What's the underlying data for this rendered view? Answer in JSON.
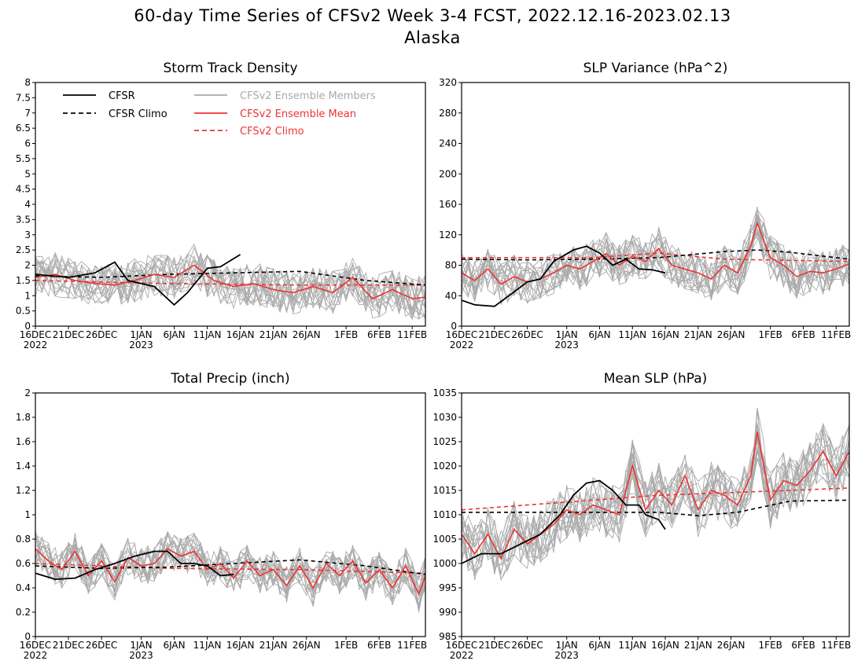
{
  "figure": {
    "title_line1": "60-day Time Series of CFSv2 Week 3-4 FCST, 2022.12.16-2023.02.13",
    "title_line2": "Alaska"
  },
  "colors": {
    "cfsr": "#000000",
    "member": "#aaaaaa",
    "mean": "#ee3333",
    "climo_cfsv2": "#ee3333"
  },
  "legend": [
    {
      "label": "CFSR",
      "style": "solid",
      "color": "#000000"
    },
    {
      "label": "CFSR Climo",
      "style": "dashed",
      "color": "#000000"
    },
    {
      "label": "CFSv2 Ensemble Members",
      "style": "solid",
      "color": "#aaaaaa"
    },
    {
      "label": "CFSv2 Ensemble Mean",
      "style": "solid",
      "color": "#ee3333"
    },
    {
      "label": "CFSv2 Climo",
      "style": "dashed",
      "color": "#ee3333"
    }
  ],
  "x_ticks": [
    "16DEC",
    "21DEC",
    "26DEC",
    "1JAN",
    "6JAN",
    "11JAN",
    "16JAN",
    "21JAN",
    "26JAN",
    "1FEB",
    "6FEB",
    "11FEB"
  ],
  "x_tick_days": [
    0,
    5,
    10,
    16,
    21,
    26,
    31,
    36,
    41,
    47,
    52,
    57
  ],
  "x_year_labels": [
    {
      "day": 0,
      "text": "2022"
    },
    {
      "day": 16,
      "text": "2023"
    }
  ],
  "chart_data": [
    {
      "type": "line",
      "title": "Storm Track Density",
      "ylim": [
        0,
        8
      ],
      "yticks": [
        0,
        0.5,
        1,
        1.5,
        2,
        2.5,
        3,
        3.5,
        4,
        4.5,
        5,
        5.5,
        6,
        6.5,
        7,
        7.5,
        8
      ],
      "xlim": [
        0,
        59
      ],
      "show_legend": true,
      "members_spread": 0.55,
      "series": [
        {
          "name": "CFSR",
          "x": [
            0,
            5,
            9,
            12,
            14,
            18,
            21,
            23,
            26,
            28,
            31
          ],
          "values": [
            1.7,
            1.6,
            1.75,
            2.1,
            1.5,
            1.3,
            0.7,
            1.1,
            1.9,
            1.95,
            2.35
          ]
        },
        {
          "name": "CFSR Climo",
          "x": [
            0,
            10,
            20,
            30,
            40,
            50,
            59
          ],
          "values": [
            1.65,
            1.6,
            1.7,
            1.75,
            1.8,
            1.5,
            1.35
          ]
        },
        {
          "name": "CFSv2 Ensemble Mean",
          "x": [
            0,
            3,
            6,
            9,
            12,
            15,
            18,
            21,
            24,
            27,
            30,
            33,
            36,
            39,
            42,
            45,
            48,
            51,
            54,
            57,
            59
          ],
          "values": [
            1.6,
            1.7,
            1.5,
            1.4,
            1.35,
            1.5,
            1.7,
            1.6,
            2.0,
            1.5,
            1.3,
            1.4,
            1.2,
            1.1,
            1.3,
            1.1,
            1.6,
            0.9,
            1.2,
            0.9,
            0.95
          ]
        },
        {
          "name": "CFSv2 Climo",
          "x": [
            0,
            20,
            40,
            59
          ],
          "values": [
            1.5,
            1.4,
            1.35,
            1.35
          ]
        }
      ]
    },
    {
      "type": "line",
      "title": "SLP Variance (hPa^2)",
      "ylim": [
        0,
        320
      ],
      "yticks": [
        0,
        40,
        80,
        120,
        160,
        200,
        240,
        280,
        320
      ],
      "xlim": [
        0,
        59
      ],
      "show_legend": false,
      "members_spread": 22,
      "series": [
        {
          "name": "CFSR",
          "x": [
            0,
            2,
            5,
            8,
            10,
            12,
            14,
            17,
            19,
            21,
            23,
            25,
            27,
            29,
            31
          ],
          "values": [
            34,
            28,
            26,
            45,
            58,
            62,
            85,
            100,
            105,
            96,
            80,
            88,
            75,
            74,
            70
          ]
        },
        {
          "name": "CFSR Climo",
          "x": [
            0,
            10,
            20,
            30,
            40,
            45,
            50,
            59
          ],
          "values": [
            88,
            87,
            88,
            90,
            98,
            100,
            97,
            88
          ]
        },
        {
          "name": "CFSv2 Ensemble Mean",
          "x": [
            0,
            2,
            4,
            6,
            8,
            10,
            12,
            14,
            16,
            18,
            20,
            22,
            24,
            26,
            28,
            30,
            32,
            34,
            36,
            38,
            40,
            42,
            44,
            45,
            47,
            49,
            51,
            53,
            55,
            57,
            59
          ],
          "values": [
            70,
            60,
            75,
            55,
            65,
            58,
            62,
            70,
            80,
            75,
            85,
            95,
            80,
            92,
            85,
            102,
            80,
            75,
            70,
            62,
            80,
            70,
            105,
            135,
            90,
            80,
            65,
            72,
            70,
            75,
            82
          ]
        },
        {
          "name": "CFSv2 Climo",
          "x": [
            0,
            20,
            30,
            40,
            59
          ],
          "values": [
            90,
            90,
            96,
            88,
            85
          ]
        }
      ]
    },
    {
      "type": "line",
      "title": "Total Precip (inch)",
      "ylim": [
        0,
        2
      ],
      "yticks": [
        0,
        0.2,
        0.4,
        0.6,
        0.8,
        1,
        1.2,
        1.4,
        1.6,
        1.8,
        2
      ],
      "xlim": [
        0,
        59
      ],
      "show_legend": false,
      "members_spread": 0.12,
      "series": [
        {
          "name": "CFSR",
          "x": [
            0,
            3,
            6,
            9,
            12,
            15,
            18,
            20,
            22,
            24,
            26,
            28,
            30
          ],
          "values": [
            0.52,
            0.47,
            0.48,
            0.55,
            0.6,
            0.66,
            0.7,
            0.7,
            0.6,
            0.6,
            0.58,
            0.5,
            0.51
          ]
        },
        {
          "name": "CFSR Climo",
          "x": [
            0,
            10,
            20,
            30,
            40,
            50,
            59
          ],
          "values": [
            0.58,
            0.56,
            0.57,
            0.6,
            0.63,
            0.58,
            0.51
          ]
        },
        {
          "name": "CFSv2 Ensemble Mean",
          "x": [
            0,
            2,
            4,
            6,
            8,
            10,
            12,
            14,
            16,
            18,
            20,
            22,
            24,
            26,
            28,
            30,
            32,
            34,
            36,
            38,
            40,
            42,
            44,
            46,
            48,
            50,
            52,
            54,
            56,
            58,
            59
          ],
          "values": [
            0.72,
            0.62,
            0.55,
            0.7,
            0.5,
            0.62,
            0.45,
            0.65,
            0.58,
            0.6,
            0.72,
            0.66,
            0.7,
            0.55,
            0.6,
            0.48,
            0.62,
            0.5,
            0.55,
            0.42,
            0.58,
            0.4,
            0.6,
            0.5,
            0.62,
            0.44,
            0.55,
            0.4,
            0.58,
            0.35,
            0.5
          ]
        },
        {
          "name": "CFSv2 Climo",
          "x": [
            0,
            20,
            40,
            59
          ],
          "values": [
            0.6,
            0.56,
            0.55,
            0.52
          ]
        }
      ]
    },
    {
      "type": "line",
      "title": "Mean SLP (hPa)",
      "ylim": [
        985,
        1035
      ],
      "yticks": [
        985,
        990,
        995,
        1000,
        1005,
        1010,
        1015,
        1020,
        1025,
        1030,
        1035
      ],
      "xlim": [
        0,
        59
      ],
      "show_legend": false,
      "members_spread": 4.5,
      "series": [
        {
          "name": "CFSR",
          "x": [
            0,
            3,
            6,
            9,
            12,
            15,
            17,
            19,
            21,
            23,
            25,
            27,
            28,
            30,
            31
          ],
          "values": [
            1000,
            1002,
            1002,
            1004,
            1006,
            1010,
            1014,
            1016.5,
            1017,
            1015,
            1012,
            1012,
            1010,
            1009,
            1007
          ]
        },
        {
          "name": "CFSR Climo",
          "x": [
            0,
            10,
            20,
            30,
            36,
            42,
            50,
            59
          ],
          "values": [
            1010.5,
            1010.5,
            1010.5,
            1010.5,
            1009.8,
            1010.5,
            1012.8,
            1013
          ]
        },
        {
          "name": "CFSv2 Ensemble Mean",
          "x": [
            0,
            2,
            4,
            6,
            8,
            10,
            12,
            14,
            16,
            18,
            20,
            22,
            24,
            26,
            28,
            30,
            32,
            34,
            36,
            38,
            40,
            42,
            44,
            45,
            47,
            49,
            51,
            53,
            55,
            57,
            59
          ],
          "values": [
            1006,
            1002,
            1006,
            1001,
            1007,
            1004,
            1006,
            1008,
            1011,
            1010,
            1012,
            1011,
            1010,
            1020,
            1011,
            1015,
            1012,
            1018,
            1011,
            1015,
            1014,
            1012,
            1018,
            1027,
            1013,
            1017,
            1016,
            1019,
            1023,
            1018,
            1023
          ]
        },
        {
          "name": "CFSv2 Climo",
          "x": [
            0,
            10,
            20,
            30,
            40,
            50,
            59
          ],
          "values": [
            1011,
            1012,
            1013,
            1014,
            1014.5,
            1015,
            1015.5
          ]
        }
      ]
    }
  ]
}
